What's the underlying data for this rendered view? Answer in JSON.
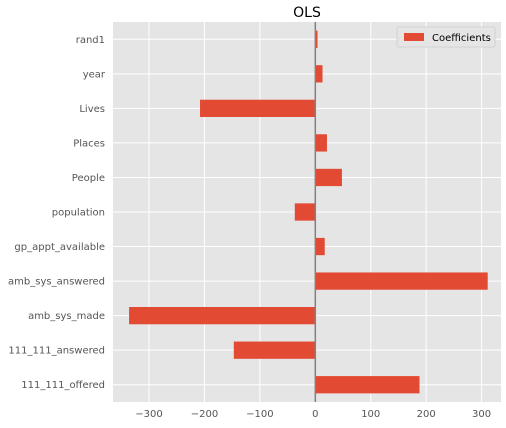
{
  "chart_data": {
    "type": "bar",
    "orientation": "horizontal",
    "title": "OLS",
    "xlabel": "",
    "ylabel": "",
    "categories": [
      "111_111_offered",
      "111_111_answered",
      "amb_sys_made",
      "amb_sys_answered",
      "gp_appt_available",
      "population",
      "People",
      "Places",
      "Lives",
      "year",
      "rand1"
    ],
    "series": [
      {
        "name": "Coefficients",
        "values": [
          188,
          -147,
          -336,
          311,
          17,
          -37,
          48,
          21,
          -208,
          13,
          4
        ],
        "color": "#e24a33"
      }
    ],
    "xlim": [
      -365,
      335
    ],
    "xticks": [
      -300,
      -200,
      -100,
      0,
      100,
      200,
      300
    ],
    "xtick_labels": [
      "−300",
      "−200",
      "−100",
      "0",
      "100",
      "200",
      "300"
    ],
    "grid": true,
    "zero_line": true,
    "legend_position": "top-right",
    "background_color": "#e5e5e5",
    "grid_color": "#ffffff",
    "zero_line_color": "#808080"
  }
}
